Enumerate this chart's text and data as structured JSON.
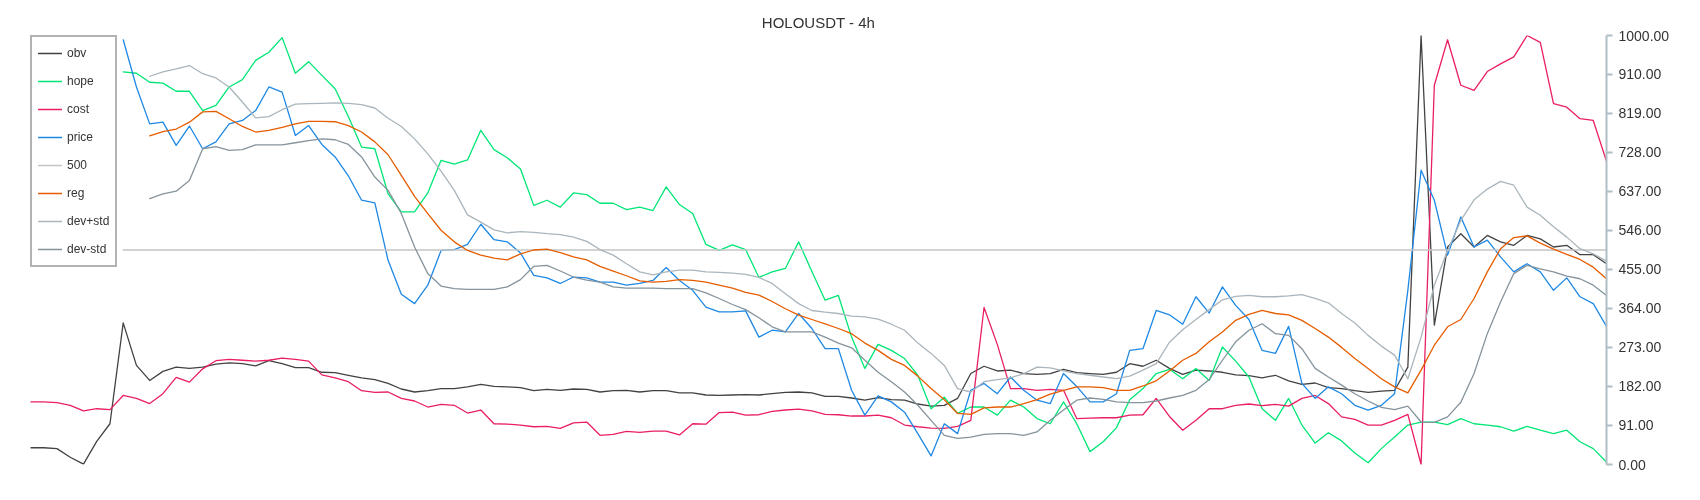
{
  "chart_data": {
    "type": "line",
    "title": "HOLOUSDT - 4h",
    "categories": [
      null,
      null,
      null,
      null,
      null,
      null,
      null,
      null,
      null,
      null,
      null,
      null,
      null,
      null,
      null,
      null,
      null,
      null,
      null,
      null,
      null,
      null,
      null,
      null,
      null,
      null,
      null,
      null,
      null,
      null,
      null,
      null,
      null,
      null,
      null,
      null,
      null,
      null,
      null,
      null,
      null,
      null,
      null,
      null,
      null,
      null,
      null,
      null,
      null,
      null,
      null,
      null,
      null,
      null,
      null,
      null,
      null,
      null,
      null,
      null,
      null,
      null,
      null,
      null,
      null,
      null,
      null,
      null,
      null,
      null,
      null,
      null,
      null,
      null,
      null,
      null,
      null,
      null,
      null,
      null,
      null,
      null,
      null,
      null,
      null,
      null,
      null,
      null,
      null,
      null,
      null,
      null,
      null,
      null,
      null,
      null,
      null,
      null,
      null,
      null,
      null,
      null,
      null,
      null,
      null,
      null,
      null,
      null,
      null,
      null,
      null,
      null,
      null,
      null,
      null,
      null,
      null,
      null,
      null,
      null
    ],
    "series": [
      {
        "name": "obv",
        "color": "#424242",
        "values": [
          39,
          39,
          37,
          17,
          1,
          54,
          95,
          330,
          231,
          196,
          217,
          227,
          224,
          227,
          234,
          237,
          235,
          230,
          242,
          235,
          226,
          226,
          215,
          214,
          208,
          202,
          198,
          189,
          176,
          169,
          172,
          177,
          177,
          181,
          187,
          182,
          181,
          179,
          172,
          175,
          173,
          176,
          175,
          169,
          172,
          173,
          169,
          172,
          172,
          167,
          167,
          162,
          161,
          162,
          163,
          162,
          165,
          168,
          169,
          167,
          159,
          159,
          155,
          150,
          156,
          151,
          150,
          141,
          136,
          138,
          154,
          212,
          229,
          218,
          220,
          212,
          210,
          212,
          222,
          214,
          212,
          210,
          215,
          235,
          229,
          243,
          224,
          210,
          220,
          218,
          215,
          209,
          207,
          202,
          208,
          195,
          187,
          190,
          179,
          177,
          172,
          168,
          171,
          173,
          227,
          1000,
          325,
          507,
          538,
          507,
          534,
          519,
          511,
          534,
          526,
          507,
          511,
          489,
          489,
          468
        ]
      },
      {
        "name": "hope",
        "color": "#00e676",
        "values": [
          null,
          null,
          null,
          null,
          null,
          null,
          null,
          915,
          912,
          891,
          889,
          870,
          870,
          825,
          837,
          880,
          897,
          942,
          961,
          995,
          912,
          939,
          907,
          876,
          811,
          740,
          736,
          631,
          589,
          589,
          633,
          709,
          700,
          710,
          779,
          734,
          715,
          689,
          604,
          616,
          600,
          633,
          629,
          609,
          609,
          594,
          600,
          592,
          647,
          606,
          585,
          513,
          499,
          512,
          501,
          436,
          449,
          457,
          519,
          450,
          383,
          394,
          297,
          224,
          280,
          266,
          247,
          208,
          130,
          157,
          119,
          134,
          134,
          115,
          150,
          134,
          107,
          95,
          146,
          95,
          30,
          53,
          86,
          151,
          177,
          212,
          222,
          200,
          224,
          196,
          274,
          241,
          204,
          130,
          103,
          154,
          92,
          50,
          74,
          55,
          27,
          4,
          37,
          64,
          92,
          99,
          99,
          93,
          107,
          95,
          92,
          88,
          78,
          89,
          80,
          72,
          80,
          53,
          37,
          6
        ]
      },
      {
        "name": "cost",
        "color": "#e91e63",
        "values": [
          146,
          146,
          144,
          138,
          125,
          130,
          128,
          161,
          154,
          142,
          165,
          203,
          192,
          223,
          242,
          245,
          243,
          241,
          243,
          248,
          245,
          241,
          209,
          202,
          193,
          172,
          168,
          169,
          154,
          148,
          134,
          140,
          138,
          120,
          127,
          95,
          94,
          92,
          88,
          89,
          84,
          97,
          99,
          68,
          70,
          77,
          75,
          78,
          78,
          69,
          95,
          94,
          121,
          122,
          115,
          116,
          124,
          127,
          129,
          125,
          117,
          116,
          113,
          113,
          115,
          109,
          92,
          88,
          85,
          84,
          89,
          103,
          366,
          280,
          177,
          177,
          173,
          175,
          173,
          107,
          108,
          109,
          109,
          115,
          116,
          154,
          112,
          80,
          103,
          130,
          130,
          138,
          141,
          137,
          140,
          136,
          154,
          161,
          142,
          111,
          105,
          92,
          92,
          103,
          117,
          0,
          884,
          990,
          884,
          872,
          916,
          934,
          950,
          1000,
          984,
          841,
          833,
          806,
          802,
          707
        ]
      },
      {
        "name": "price",
        "color": "#1e88e5",
        "values": [
          null,
          null,
          null,
          null,
          null,
          null,
          null,
          990,
          880,
          794,
          798,
          744,
          789,
          736,
          752,
          794,
          802,
          825,
          880,
          868,
          767,
          790,
          746,
          717,
          673,
          616,
          610,
          476,
          397,
          375,
          418,
          499,
          501,
          513,
          560,
          524,
          519,
          493,
          441,
          435,
          422,
          437,
          435,
          425,
          425,
          418,
          422,
          429,
          459,
          429,
          406,
          367,
          356,
          356,
          358,
          297,
          313,
          309,
          352,
          317,
          270,
          270,
          173,
          115,
          160,
          146,
          122,
          72,
          20,
          95,
          72,
          173,
          189,
          165,
          204,
          173,
          150,
          142,
          212,
          182,
          146,
          146,
          165,
          266,
          270,
          359,
          349,
          327,
          391,
          353,
          414,
          371,
          338,
          266,
          259,
          322,
          189,
          154,
          181,
          165,
          138,
          127,
          138,
          165,
          406,
          686,
          616,
          488,
          577,
          507,
          523,
          484,
          449,
          468,
          449,
          406,
          435,
          391,
          375,
          322
        ]
      },
      {
        "name": "500",
        "color": "#c4c4c4",
        "values": [
          null,
          null,
          null,
          null,
          null,
          null,
          null,
          500,
          500,
          500,
          500,
          500,
          500,
          500,
          500,
          500,
          500,
          500,
          500,
          500,
          500,
          500,
          500,
          500,
          500,
          500,
          500,
          500,
          500,
          500,
          500,
          500,
          500,
          500,
          500,
          500,
          500,
          500,
          500,
          500,
          500,
          500,
          500,
          500,
          500,
          500,
          500,
          500,
          500,
          500,
          500,
          500,
          500,
          500,
          500,
          500,
          500,
          500,
          500,
          500,
          500,
          500,
          500,
          500,
          500,
          500,
          500,
          500,
          500,
          500,
          500,
          500,
          500,
          500,
          500,
          500,
          500,
          500,
          500,
          500,
          500,
          500,
          500,
          500,
          500,
          500,
          500,
          500,
          500,
          500,
          500,
          500,
          500,
          500,
          500,
          500,
          500,
          500,
          500,
          500,
          500,
          500,
          500,
          500,
          500,
          500,
          500,
          500,
          500,
          500,
          500,
          500,
          500,
          500,
          500,
          500,
          500,
          500,
          500,
          500
        ]
      },
      {
        "name": "reg",
        "color": "#e65c00",
        "values": [
          null,
          null,
          null,
          null,
          null,
          null,
          null,
          null,
          null,
          766,
          776,
          782,
          798,
          822,
          823,
          806,
          788,
          775,
          779,
          786,
          794,
          800,
          800,
          799,
          790,
          775,
          752,
          722,
          674,
          625,
          585,
          546,
          519,
          499,
          488,
          481,
          477,
          491,
          500,
          502,
          494,
          484,
          477,
          462,
          451,
          440,
          428,
          425,
          427,
          431,
          429,
          425,
          418,
          411,
          401,
          395,
          380,
          363,
          348,
          338,
          328,
          317,
          305,
          283,
          266,
          245,
          231,
          206,
          177,
          151,
          119,
          117,
          132,
          134,
          134,
          142,
          151,
          164,
          173,
          181,
          181,
          179,
          173,
          173,
          183,
          195,
          218,
          243,
          259,
          286,
          309,
          336,
          350,
          359,
          352,
          349,
          336,
          317,
          297,
          273,
          247,
          224,
          200,
          181,
          167,
          220,
          278,
          321,
          338,
          387,
          449,
          503,
          529,
          533,
          516,
          502,
          490,
          478,
          460,
          433
        ]
      },
      {
        "name": "dev+std",
        "color": "#aab5bc",
        "values": [
          null,
          null,
          null,
          null,
          null,
          null,
          null,
          null,
          null,
          905,
          915,
          922,
          930,
          911,
          901,
          880,
          845,
          808,
          811,
          827,
          840,
          841,
          842,
          843,
          842,
          839,
          831,
          807,
          788,
          759,
          724,
          684,
          639,
          582,
          565,
          547,
          540,
          543,
          541,
          538,
          536,
          530,
          520,
          501,
          488,
          468,
          449,
          442,
          449,
          453,
          453,
          449,
          448,
          446,
          443,
          436,
          422,
          398,
          375,
          359,
          355,
          352,
          346,
          344,
          339,
          327,
          313,
          283,
          259,
          231,
          177,
          169,
          193,
          198,
          202,
          212,
          227,
          225,
          218,
          212,
          208,
          204,
          200,
          206,
          220,
          235,
          285,
          314,
          338,
          361,
          384,
          392,
          394,
          391,
          391,
          393,
          396,
          387,
          377,
          352,
          330,
          301,
          276,
          255,
          200,
          297,
          418,
          499,
          569,
          617,
          642,
          660,
          651,
          600,
          581,
          554,
          530,
          503,
          491,
          474
        ]
      },
      {
        "name": "dev-std",
        "color": "#85939c",
        "values": [
          null,
          null,
          null,
          null,
          null,
          null,
          null,
          null,
          null,
          620,
          631,
          637,
          662,
          736,
          741,
          732,
          734,
          745,
          745,
          745,
          750,
          755,
          759,
          757,
          746,
          717,
          670,
          639,
          585,
          507,
          445,
          416,
          410,
          408,
          408,
          408,
          414,
          431,
          462,
          464,
          451,
          437,
          430,
          425,
          414,
          411,
          411,
          411,
          410,
          410,
          410,
          400,
          387,
          373,
          361,
          342,
          321,
          309,
          309,
          309,
          297,
          283,
          272,
          243,
          215,
          193,
          169,
          138,
          103,
          68,
          61,
          64,
          70,
          72,
          72,
          68,
          76,
          103,
          127,
          150,
          155,
          152,
          146,
          144,
          144,
          148,
          155,
          161,
          173,
          198,
          243,
          286,
          313,
          328,
          305,
          301,
          270,
          224,
          204,
          185,
          165,
          148,
          133,
          128,
          136,
          99,
          98,
          111,
          145,
          212,
          305,
          379,
          445,
          464,
          456,
          449,
          439,
          433,
          418,
          394
        ]
      }
    ],
    "ylim": [
      0,
      1000
    ],
    "yticks": [
      {
        "value": 0,
        "label": "0.00"
      },
      {
        "value": 91,
        "label": "91.00"
      },
      {
        "value": 182,
        "label": "182.00"
      },
      {
        "value": 273,
        "label": "273.00"
      },
      {
        "value": 364,
        "label": "364.00"
      },
      {
        "value": 455,
        "label": "455.00"
      },
      {
        "value": 546,
        "label": "546.00"
      },
      {
        "value": 637,
        "label": "637.00"
      },
      {
        "value": 728,
        "label": "728.00"
      },
      {
        "value": 819,
        "label": "819.00"
      },
      {
        "value": 910,
        "label": "910.00"
      },
      {
        "value": 1000,
        "label": "1000.00"
      }
    ],
    "legend": "top left",
    "tick_labels": "y"
  }
}
